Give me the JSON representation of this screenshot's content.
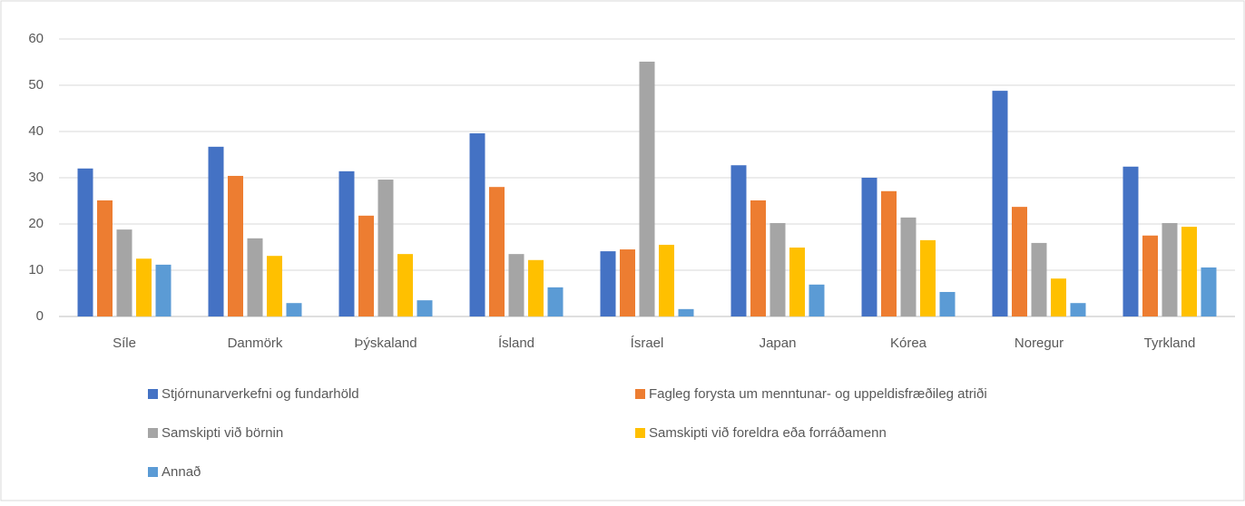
{
  "chart_data": {
    "type": "bar",
    "categories": [
      "Síle",
      "Danmörk",
      "Þýskaland",
      "Ísland",
      "Ísrael",
      "Japan",
      "Kórea",
      "Noregur",
      "Tyrkland"
    ],
    "series": [
      {
        "name": "Stjórnunarverkefni og fundarhöld",
        "color": "#4472c4",
        "values": [
          32.0,
          36.7,
          31.4,
          39.6,
          14.1,
          32.7,
          30.0,
          48.8,
          32.4
        ]
      },
      {
        "name": "Fagleg forysta um menntunar- og uppeldisfræðileg atriði",
        "color": "#ed7d31",
        "values": [
          25.1,
          30.4,
          21.8,
          28.0,
          14.5,
          25.1,
          27.1,
          23.7,
          17.5
        ]
      },
      {
        "name": "Samskipti við börnin",
        "color": "#a5a5a5",
        "values": [
          18.8,
          16.9,
          29.6,
          13.5,
          55.1,
          20.2,
          21.4,
          15.9,
          20.2
        ]
      },
      {
        "name": "Samskipti við foreldra eða forráðamenn",
        "color": "#ffc000",
        "values": [
          12.5,
          13.1,
          13.5,
          12.2,
          15.5,
          14.9,
          16.5,
          8.2,
          19.4
        ]
      },
      {
        "name": "Annað",
        "color": "#5b9bd5",
        "values": [
          11.2,
          2.9,
          3.5,
          6.3,
          1.6,
          6.9,
          5.3,
          2.9,
          10.6
        ]
      }
    ],
    "ylim": [
      0,
      60
    ],
    "yticks": [
      0,
      10,
      20,
      30,
      40,
      50,
      60
    ],
    "grid": true,
    "legend": "bottom"
  }
}
